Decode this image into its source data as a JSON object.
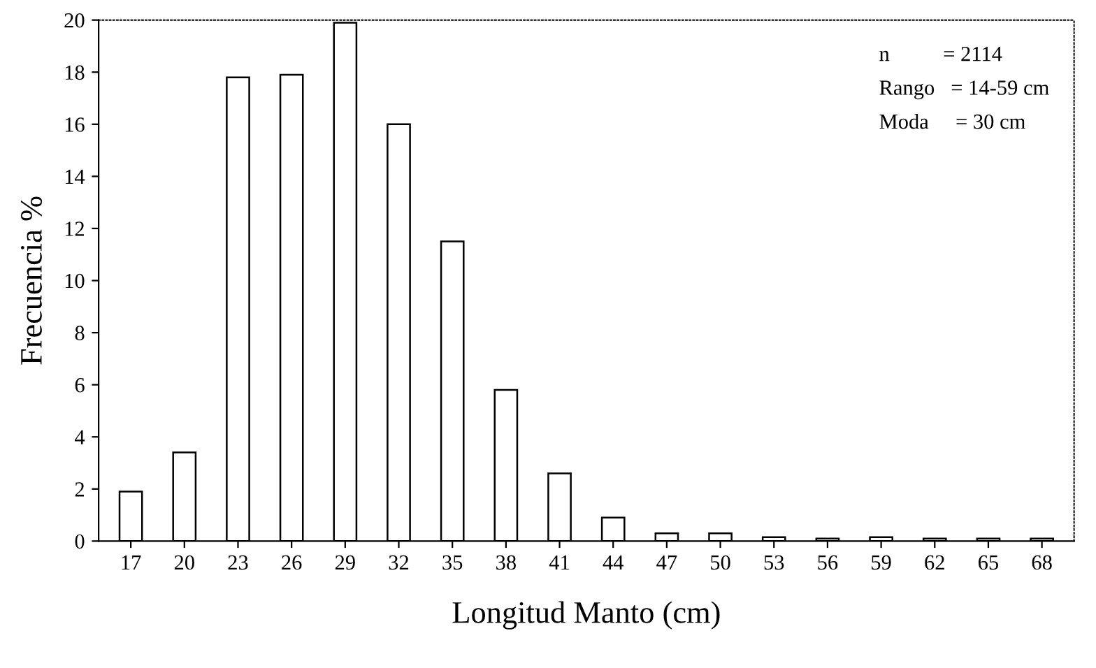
{
  "chart_data": {
    "type": "bar",
    "xlabel": "Longitud Manto (cm)",
    "ylabel": "Frecuencia %",
    "categories": [
      "17",
      "20",
      "23",
      "26",
      "29",
      "32",
      "35",
      "38",
      "41",
      "44",
      "47",
      "50",
      "53",
      "56",
      "59",
      "62",
      "65",
      "68"
    ],
    "values": [
      1.9,
      3.4,
      17.8,
      17.9,
      19.9,
      16.0,
      11.5,
      5.8,
      2.6,
      0.9,
      0.3,
      0.3,
      0.15,
      0.1,
      0.15,
      0.1,
      0.1,
      0.1
    ],
    "color": "#ffffff",
    "ylim": [
      0,
      20
    ],
    "yticks": [
      0,
      2,
      4,
      6,
      8,
      10,
      12,
      14,
      16,
      18,
      20
    ],
    "grid": false,
    "annotations": [
      "n          = 2114",
      "Rango   = 14-59 cm",
      "Moda     = 30 cm"
    ]
  }
}
